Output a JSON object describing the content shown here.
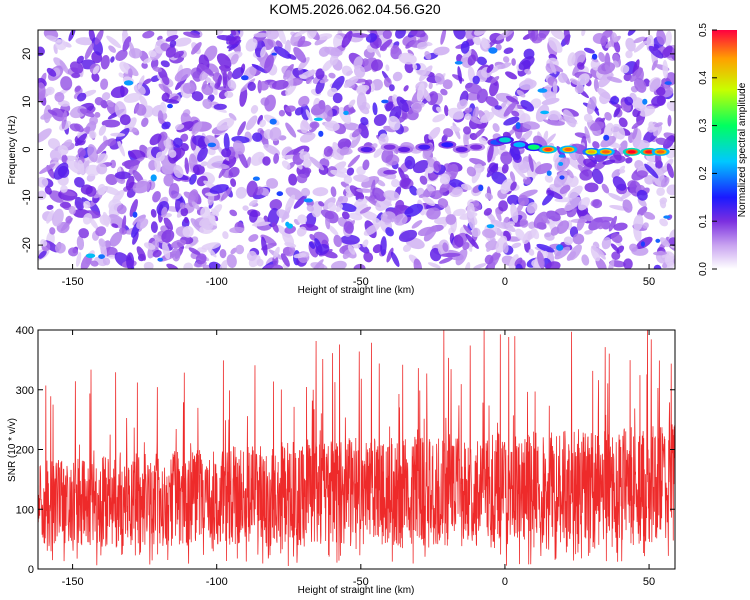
{
  "title": "KOM5.2026.062.04.56.G20",
  "colors": {
    "snr_line": "#ee2a2a",
    "background": "#ffffff",
    "axis": "#000000"
  },
  "chart_data": [
    {
      "type": "heatmap",
      "xlabel": "Height of straight line (km)",
      "ylabel": "Frequency (Hz)",
      "xlim": [
        -162,
        59
      ],
      "ylim": [
        -25,
        25
      ],
      "xticks": [
        -150,
        -100,
        -50,
        0,
        50
      ],
      "yticks": [
        -20,
        -10,
        0,
        10,
        20
      ],
      "colorbar": {
        "label": "Normalized spectral amplitude",
        "range": [
          0,
          0.5
        ],
        "ticks": [
          "0.0",
          "0.1",
          "0.2",
          "0.3",
          "0.4",
          "0.5"
        ],
        "colormap": [
          "#ffffff",
          "#c8a2f0",
          "#7b2fe0",
          "#1a1aff",
          "#00c8ff",
          "#00ff60",
          "#c8ff00",
          "#ffa000",
          "#ff0000"
        ]
      },
      "ridge": {
        "description_points": [
          {
            "x": -48,
            "y": 0.0,
            "amp": 0.15
          },
          {
            "x": -40,
            "y": 0.5,
            "amp": 0.12
          },
          {
            "x": -35,
            "y": 0.0,
            "amp": 0.14
          },
          {
            "x": -28,
            "y": 0.5,
            "amp": 0.16
          },
          {
            "x": -20,
            "y": 1.0,
            "amp": 0.18
          },
          {
            "x": -15,
            "y": 0.0,
            "amp": 0.14
          },
          {
            "x": -10,
            "y": 0.5,
            "amp": 0.12
          },
          {
            "x": -3,
            "y": 1.5,
            "amp": 0.2
          },
          {
            "x": 0,
            "y": 2.0,
            "amp": 0.26
          },
          {
            "x": 5,
            "y": 1.0,
            "amp": 0.24
          },
          {
            "x": 10,
            "y": 0.5,
            "amp": 0.3
          },
          {
            "x": 15,
            "y": 0.0,
            "amp": 0.42
          },
          {
            "x": 22,
            "y": 0.0,
            "amp": 0.4
          },
          {
            "x": 30,
            "y": -0.5,
            "amp": 0.36
          },
          {
            "x": 35,
            "y": -0.5,
            "amp": 0.4
          },
          {
            "x": 44,
            "y": -0.5,
            "amp": 0.45
          },
          {
            "x": 50,
            "y": -0.5,
            "amp": 0.44
          },
          {
            "x": 54,
            "y": -0.5,
            "amp": 0.4
          }
        ]
      }
    },
    {
      "type": "line",
      "xlabel": "Height of straight line (km)",
      "ylabel": "SNR (10 * v/v)",
      "xlim": [
        -162,
        59
      ],
      "ylim": [
        0,
        400
      ],
      "xticks": [
        -150,
        -100,
        -50,
        0,
        50
      ],
      "yticks": [
        0,
        100,
        200,
        300,
        400
      ],
      "series": [
        {
          "color": "#ee2a2a",
          "trend": {
            "x": [
              -162,
              -120,
              -80,
              -40,
              0,
              40,
              59
            ],
            "mean": [
              110,
              115,
              125,
              130,
              135,
              140,
              145
            ],
            "spread": [
              150,
              160,
              175,
              185,
              190,
              195,
              200
            ]
          }
        }
      ]
    }
  ]
}
